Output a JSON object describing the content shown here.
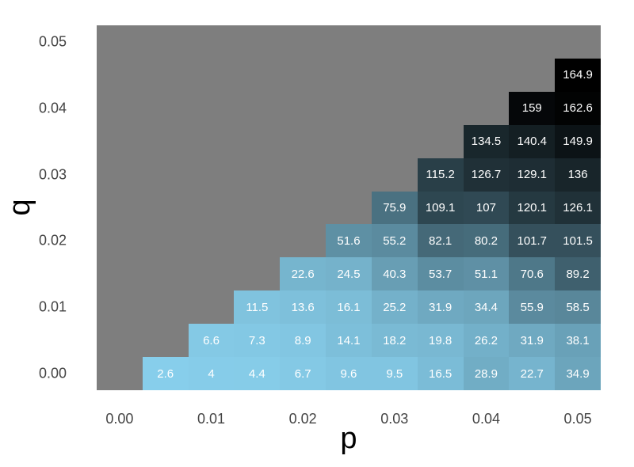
{
  "chart_data": {
    "type": "heatmap",
    "title": "",
    "xlabel": "p",
    "ylabel": "q",
    "x_range": [
      -0.0025,
      0.0525
    ],
    "y_range": [
      -0.0025,
      0.0525
    ],
    "cell_size": 0.005,
    "grid": false,
    "legend": "none",
    "panel_bg": "#7E7E7E",
    "color_low": "#87CEEB",
    "color_high": "#000000",
    "value_min": 2.6,
    "value_max": 164.9,
    "x_ticks": [
      {
        "value": 0.0,
        "label": "0.00"
      },
      {
        "value": 0.01,
        "label": "0.01"
      },
      {
        "value": 0.02,
        "label": "0.02"
      },
      {
        "value": 0.03,
        "label": "0.03"
      },
      {
        "value": 0.04,
        "label": "0.04"
      },
      {
        "value": 0.05,
        "label": "0.05"
      }
    ],
    "y_ticks": [
      {
        "value": 0.0,
        "label": "0.00"
      },
      {
        "value": 0.01,
        "label": "0.01"
      },
      {
        "value": 0.02,
        "label": "0.02"
      },
      {
        "value": 0.03,
        "label": "0.03"
      },
      {
        "value": 0.04,
        "label": "0.04"
      },
      {
        "value": 0.05,
        "label": "0.05"
      }
    ],
    "rows": [
      {
        "q": 0.0,
        "cells": [
          {
            "p": 0.005,
            "v": 2.6
          },
          {
            "p": 0.01,
            "v": 4
          },
          {
            "p": 0.015,
            "v": 4.4
          },
          {
            "p": 0.02,
            "v": 6.7
          },
          {
            "p": 0.025,
            "v": 9.6
          },
          {
            "p": 0.03,
            "v": 9.5
          },
          {
            "p": 0.035,
            "v": 16.5
          },
          {
            "p": 0.04,
            "v": 28.9
          },
          {
            "p": 0.045,
            "v": 22.7
          },
          {
            "p": 0.05,
            "v": 34.9
          }
        ]
      },
      {
        "q": 0.005,
        "cells": [
          {
            "p": 0.01,
            "v": 6.6
          },
          {
            "p": 0.015,
            "v": 7.3
          },
          {
            "p": 0.02,
            "v": 8.9
          },
          {
            "p": 0.025,
            "v": 14.1
          },
          {
            "p": 0.03,
            "v": 18.2
          },
          {
            "p": 0.035,
            "v": 19.8
          },
          {
            "p": 0.04,
            "v": 26.2
          },
          {
            "p": 0.045,
            "v": 31.9
          },
          {
            "p": 0.05,
            "v": 38.1
          }
        ]
      },
      {
        "q": 0.01,
        "cells": [
          {
            "p": 0.015,
            "v": 11.5
          },
          {
            "p": 0.02,
            "v": 13.6
          },
          {
            "p": 0.025,
            "v": 16.1
          },
          {
            "p": 0.03,
            "v": 25.2
          },
          {
            "p": 0.035,
            "v": 31.9
          },
          {
            "p": 0.04,
            "v": 34.4
          },
          {
            "p": 0.045,
            "v": 55.9
          },
          {
            "p": 0.05,
            "v": 58.5
          }
        ]
      },
      {
        "q": 0.015,
        "cells": [
          {
            "p": 0.02,
            "v": 22.6
          },
          {
            "p": 0.025,
            "v": 24.5
          },
          {
            "p": 0.03,
            "v": 40.3
          },
          {
            "p": 0.035,
            "v": 53.7
          },
          {
            "p": 0.04,
            "v": 51.1
          },
          {
            "p": 0.045,
            "v": 70.6
          },
          {
            "p": 0.05,
            "v": 89.2
          }
        ]
      },
      {
        "q": 0.02,
        "cells": [
          {
            "p": 0.025,
            "v": 51.6
          },
          {
            "p": 0.03,
            "v": 55.2
          },
          {
            "p": 0.035,
            "v": 82.1
          },
          {
            "p": 0.04,
            "v": 80.2
          },
          {
            "p": 0.045,
            "v": 101.7
          },
          {
            "p": 0.05,
            "v": 101.5
          }
        ]
      },
      {
        "q": 0.025,
        "cells": [
          {
            "p": 0.03,
            "v": 75.9
          },
          {
            "p": 0.035,
            "v": 109.1
          },
          {
            "p": 0.04,
            "v": 107
          },
          {
            "p": 0.045,
            "v": 120.1
          },
          {
            "p": 0.05,
            "v": 126.1
          }
        ]
      },
      {
        "q": 0.03,
        "cells": [
          {
            "p": 0.035,
            "v": 115.2
          },
          {
            "p": 0.04,
            "v": 126.7
          },
          {
            "p": 0.045,
            "v": 129.1
          },
          {
            "p": 0.05,
            "v": 136
          }
        ]
      },
      {
        "q": 0.035,
        "cells": [
          {
            "p": 0.04,
            "v": 134.5
          },
          {
            "p": 0.045,
            "v": 140.4
          },
          {
            "p": 0.05,
            "v": 149.9
          }
        ]
      },
      {
        "q": 0.04,
        "cells": [
          {
            "p": 0.045,
            "v": 159
          },
          {
            "p": 0.05,
            "v": 162.6
          }
        ]
      },
      {
        "q": 0.045,
        "cells": [
          {
            "p": 0.05,
            "v": 164.9
          }
        ]
      }
    ]
  }
}
